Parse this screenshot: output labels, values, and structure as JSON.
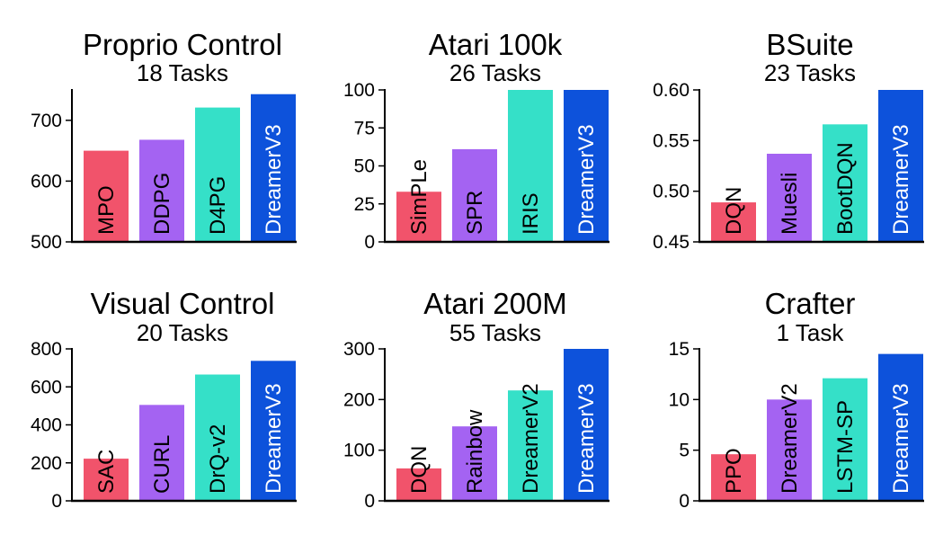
{
  "chart_data": [
    {
      "type": "bar",
      "title": "Proprio Control",
      "subtitle": "18 Tasks",
      "categories": [
        "MPO",
        "DDPG",
        "D4PG",
        "DreamerV3"
      ],
      "values": [
        650,
        668,
        721,
        743
      ],
      "colors": [
        "#f1536b",
        "#a463f2",
        "#35e0c8",
        "#0d52db"
      ],
      "ylim": [
        500,
        750
      ],
      "yticks": [
        "500",
        "600",
        "700"
      ],
      "ytick_values": [
        500,
        600,
        700
      ],
      "xlabel": "",
      "ylabel": ""
    },
    {
      "type": "bar",
      "title": "Atari 100k",
      "subtitle": "26 Tasks",
      "categories": [
        "SimPLe",
        "SPR",
        "IRIS",
        "DreamerV3"
      ],
      "values": [
        33,
        61,
        100,
        100
      ],
      "colors": [
        "#f1536b",
        "#a463f2",
        "#35e0c8",
        "#0d52db"
      ],
      "ylim": [
        0,
        100
      ],
      "yticks": [
        "0",
        "25",
        "50",
        "75",
        "100"
      ],
      "ytick_values": [
        0,
        25,
        50,
        75,
        100
      ],
      "xlabel": "",
      "ylabel": ""
    },
    {
      "type": "bar",
      "title": "BSuite",
      "subtitle": "23 Tasks",
      "categories": [
        "DQN",
        "Muesli",
        "BootDQN",
        "DreamerV3"
      ],
      "values": [
        0.489,
        0.537,
        0.566,
        0.6
      ],
      "colors": [
        "#f1536b",
        "#a463f2",
        "#35e0c8",
        "#0d52db"
      ],
      "ylim": [
        0.45,
        0.6
      ],
      "yticks": [
        "0.45",
        "0.50",
        "0.55",
        "0.60"
      ],
      "ytick_values": [
        0.45,
        0.5,
        0.55,
        0.6
      ],
      "xlabel": "",
      "ylabel": ""
    },
    {
      "type": "bar",
      "title": "Visual Control",
      "subtitle": "20 Tasks",
      "categories": [
        "SAC",
        "CURL",
        "DrQ-v2",
        "DreamerV3"
      ],
      "values": [
        222,
        505,
        665,
        737
      ],
      "colors": [
        "#f1536b",
        "#a463f2",
        "#35e0c8",
        "#0d52db"
      ],
      "ylim": [
        0,
        800
      ],
      "yticks": [
        "0",
        "200",
        "400",
        "600",
        "800"
      ],
      "ytick_values": [
        0,
        200,
        400,
        600,
        800
      ],
      "xlabel": "",
      "ylabel": ""
    },
    {
      "type": "bar",
      "title": "Atari 200M",
      "subtitle": "55 Tasks",
      "categories": [
        "DQN",
        "Rainbow",
        "DreamerV2",
        "DreamerV3"
      ],
      "values": [
        64,
        147,
        218,
        302
      ],
      "colors": [
        "#f1536b",
        "#a463f2",
        "#35e0c8",
        "#0d52db"
      ],
      "ylim": [
        0,
        300
      ],
      "yticks": [
        "0",
        "100",
        "200",
        "300"
      ],
      "ytick_values": [
        0,
        100,
        200,
        300
      ],
      "xlabel": "",
      "ylabel": ""
    },
    {
      "type": "bar",
      "title": "Crafter",
      "subtitle": "1 Task",
      "categories": [
        "PPO",
        "DreamerV2",
        "LSTM-SP",
        "DreamerV3"
      ],
      "values": [
        4.6,
        10.0,
        12.1,
        14.5
      ],
      "colors": [
        "#f1536b",
        "#a463f2",
        "#35e0c8",
        "#0d52db"
      ],
      "ylim": [
        0,
        15
      ],
      "yticks": [
        "0",
        "5",
        "10",
        "15"
      ],
      "ytick_values": [
        0,
        5,
        10,
        15
      ],
      "xlabel": "",
      "ylabel": ""
    }
  ]
}
